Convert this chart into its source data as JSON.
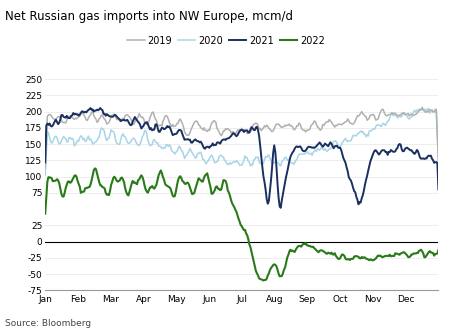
{
  "title": "Net Russian gas imports into NW Europe, mcm/d",
  "source": "Source: Bloomberg",
  "legend": [
    "2019",
    "2020",
    "2021",
    "2022"
  ],
  "colors": {
    "2019": "#b0b0b0",
    "2020": "#a8d4e8",
    "2021": "#1a3060",
    "2022": "#2a7a1a"
  },
  "ylim": [
    -75,
    260
  ],
  "yticks": [
    -75,
    -50,
    -25,
    0,
    25,
    75,
    100,
    125,
    150,
    175,
    200,
    225,
    250
  ],
  "months": [
    "Jan",
    "Feb",
    "Mar",
    "Apr",
    "May",
    "Jun",
    "Jul",
    "Aug",
    "Sep",
    "Oct",
    "Nov",
    "Dec"
  ],
  "background_color": "#ffffff",
  "lw_2019": 1.1,
  "lw_2020": 1.1,
  "lw_2021": 1.4,
  "lw_2022": 1.5
}
